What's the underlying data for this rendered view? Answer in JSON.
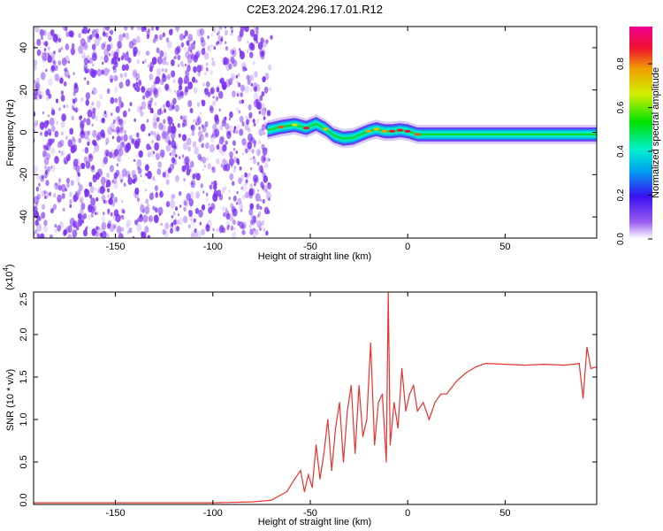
{
  "title": "C2E3.2024.296.17.01.R12",
  "colors": {
    "snr_line": "#e8322f",
    "speckle": "#7a2ff0",
    "axis": "#000000"
  },
  "colorbar": {
    "label": "Normalized spectral amplitude",
    "ticks": [
      "0.0",
      "0.2",
      "0.4",
      "0.6",
      "0.8"
    ],
    "tick_values": [
      0.0,
      0.2,
      0.4,
      0.6,
      0.8
    ],
    "range": [
      0,
      0.97
    ],
    "colormap": "rainbow (purple-blue-cyan-green-yellow-orange-red-magenta)"
  },
  "chart_data": [
    {
      "type": "heatmap",
      "title": "",
      "xlabel": "Height of straight line (km)",
      "ylabel": "Frequency (Hz)",
      "xlim": [
        -192,
        97
      ],
      "ylim": [
        -50,
        50
      ],
      "xticks": [
        -150,
        -100,
        -50,
        0,
        50
      ],
      "xtick_labels": [
        "-150",
        "-100",
        "-50",
        "0",
        "50"
      ],
      "yticks": [
        -40,
        -20,
        0,
        20,
        40
      ],
      "ytick_labels": [
        "-40",
        "-20",
        "0",
        "20",
        "40"
      ],
      "noise_region_x": [
        -192,
        -71
      ],
      "ridge_track": {
        "x": [
          -72,
          -65,
          -58,
          -52,
          -47,
          -42,
          -38,
          -33,
          -28,
          -24,
          -20,
          -16,
          -12,
          -8,
          -4,
          0,
          5,
          15,
          30,
          50,
          70,
          90,
          97
        ],
        "freq": [
          1.0,
          2.5,
          3.5,
          2.0,
          4.0,
          1.5,
          -1.5,
          -3.0,
          -2.5,
          -1.0,
          0.5,
          1.5,
          0.5,
          0.5,
          1.0,
          0.5,
          -1.0,
          -1.0,
          -1.0,
          -1.0,
          -1.0,
          -1.0,
          -1.0
        ],
        "amplitude": [
          0.4,
          0.85,
          0.7,
          0.9,
          0.6,
          0.75,
          0.5,
          0.65,
          0.6,
          0.55,
          0.8,
          0.75,
          0.8,
          0.9,
          0.9,
          0.95,
          0.85,
          0.6,
          0.6,
          0.55,
          0.5,
          0.55,
          0.5
        ]
      }
    },
    {
      "type": "line",
      "title": "",
      "xlabel": "Height of straight line (km)",
      "ylabel": "SNR (10 * v/v)",
      "y_multiplier_label": "(x10",
      "y_multiplier_exp": "4",
      "y_multiplier_close": ")",
      "xlim": [
        -192,
        97
      ],
      "ylim": [
        0,
        2.5
      ],
      "xticks": [
        -150,
        -100,
        -50,
        0,
        50
      ],
      "xtick_labels": [
        "-150",
        "-100",
        "-50",
        "0",
        "50"
      ],
      "yticks": [
        0,
        0.5,
        1,
        1.5,
        2,
        2.5
      ],
      "ytick_labels": [
        "0.0",
        "0.5",
        "1.0",
        "1.5",
        "2.0",
        "2.5"
      ],
      "series": [
        {
          "x": [
            -192,
            -150,
            -100,
            -80,
            -70,
            -62,
            -58,
            -55,
            -53,
            -51,
            -49,
            -47,
            -45,
            -43,
            -41,
            -39,
            -37,
            -35,
            -33,
            -31,
            -29,
            -27,
            -25,
            -23,
            -21,
            -19,
            -17,
            -15,
            -13,
            -11,
            -10,
            -9,
            -7,
            -5,
            -3,
            -1,
            1,
            3,
            5,
            8,
            11,
            14,
            17,
            20,
            25,
            30,
            35,
            40,
            50,
            60,
            70,
            80,
            85,
            88,
            90,
            92,
            94,
            97
          ],
          "y": [
            0.02,
            0.02,
            0.02,
            0.03,
            0.05,
            0.15,
            0.3,
            0.4,
            0.15,
            0.35,
            0.2,
            0.7,
            0.3,
            0.6,
            1.0,
            0.4,
            0.9,
            1.2,
            0.5,
            1.1,
            1.4,
            0.6,
            1.4,
            0.8,
            1.0,
            1.9,
            0.7,
            1.2,
            1.3,
            0.5,
            2.5,
            0.7,
            1.2,
            0.9,
            1.6,
            1.1,
            1.3,
            1.4,
            1.1,
            1.2,
            1.0,
            1.2,
            1.3,
            1.3,
            1.45,
            1.55,
            1.62,
            1.66,
            1.65,
            1.64,
            1.65,
            1.64,
            1.65,
            1.66,
            1.25,
            1.85,
            1.6,
            1.62
          ]
        }
      ]
    }
  ]
}
